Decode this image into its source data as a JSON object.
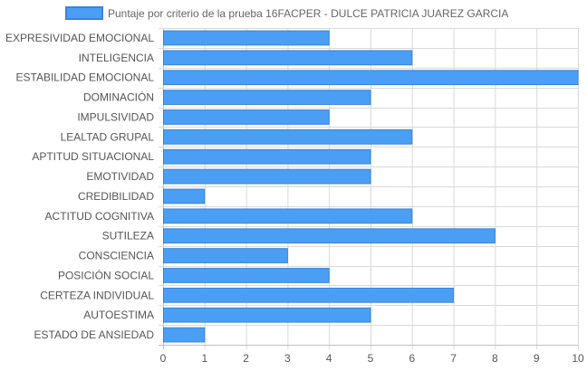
{
  "chart_data": {
    "type": "bar",
    "orientation": "horizontal",
    "categories": [
      "EXPRESIVIDAD EMOCIONAL",
      "INTELIGENCIA",
      "ESTABILIDAD EMOCIONAL",
      "DOMINACIÓN",
      "IMPULSIVIDAD",
      "LEALTAD GRUPAL",
      "APTITUD SITUACIONAL",
      "EMOTIVIDAD",
      "CREDIBILIDAD",
      "ACTITUD COGNITIVA",
      "SUTILEZA",
      "CONSCIENCIA",
      "POSICIÓN SOCIAL",
      "CERTEZA INDIVIDUAL",
      "AUTOESTIMA",
      "ESTADO DE ANSIEDAD"
    ],
    "series": [
      {
        "name": "Puntaje por criterio de la prueba 16FACPER - DULCE PATRICIA JUAREZ GARCIA",
        "values": [
          4,
          6,
          10,
          5,
          4,
          6,
          5,
          5,
          1,
          6,
          8,
          3,
          4,
          7,
          5,
          1
        ],
        "color": "#4a9ff5",
        "border_color": "#3b82d9"
      }
    ],
    "xlim": [
      0,
      10
    ],
    "x_ticks": [
      "0",
      "1",
      "2",
      "3",
      "4",
      "5",
      "6",
      "7",
      "8",
      "9",
      "10"
    ],
    "grid": true,
    "legend_position": "top"
  }
}
